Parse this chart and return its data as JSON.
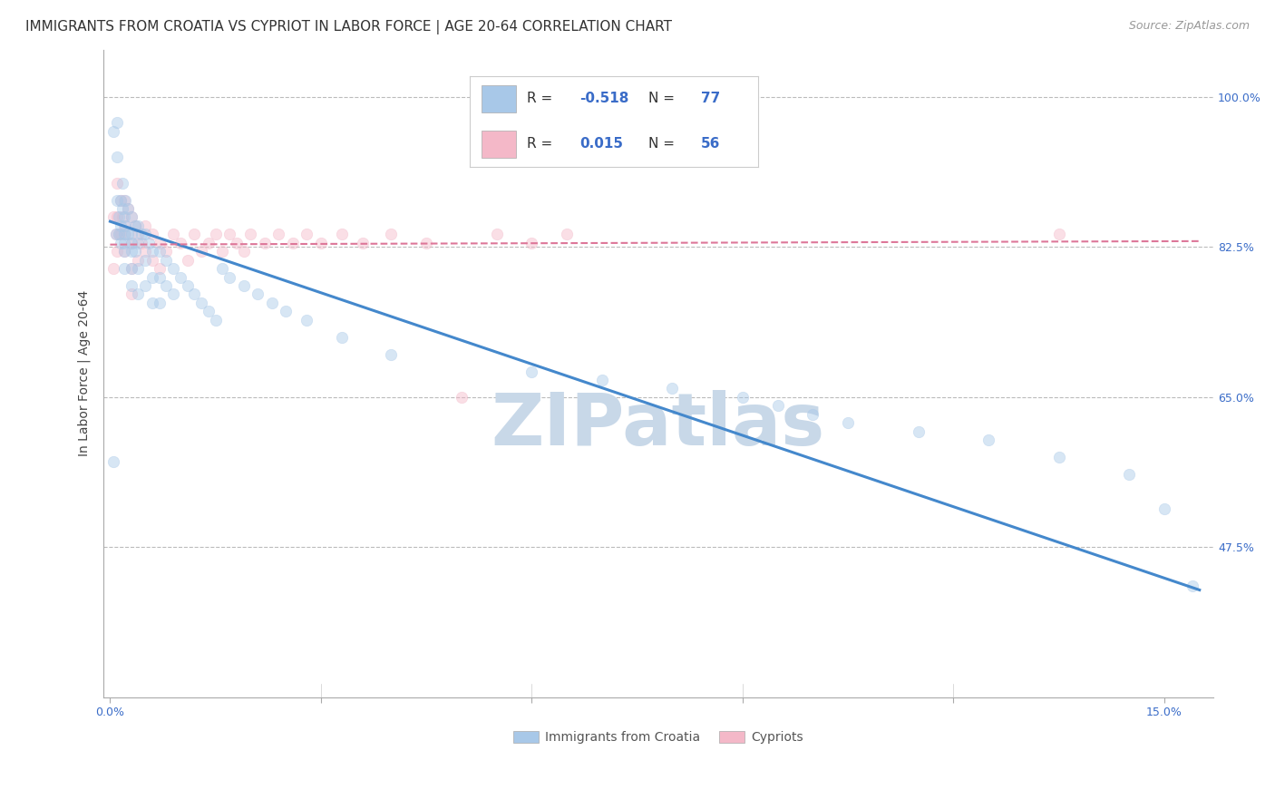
{
  "title": "IMMIGRANTS FROM CROATIA VS CYPRIOT IN LABOR FORCE | AGE 20-64 CORRELATION CHART",
  "source": "Source: ZipAtlas.com",
  "xlabel_ticks": [
    0.0,
    0.03,
    0.06,
    0.09,
    0.12,
    0.15
  ],
  "xlabel_tick_labels": [
    "0.0%",
    "",
    "",
    "",
    "",
    "15.0%"
  ],
  "ylabel_ticks": [
    0.475,
    0.65,
    0.825,
    1.0
  ],
  "ylabel_tick_labels": [
    "47.5%",
    "65.0%",
    "82.5%",
    "100.0%"
  ],
  "xlim": [
    -0.001,
    0.157
  ],
  "ylim": [
    0.3,
    1.055
  ],
  "ylabel": "In Labor Force | Age 20-64",
  "blue_color": "#A8C8E8",
  "pink_color": "#F4B8C8",
  "blue_line_color": "#4488CC",
  "pink_line_color": "#DD7799",
  "legend_label_blue": "Immigrants from Croatia",
  "legend_label_pink": "Cypriots",
  "blue_scatter_x": [
    0.0005,
    0.0005,
    0.0008,
    0.001,
    0.001,
    0.001,
    0.0012,
    0.0012,
    0.0015,
    0.0015,
    0.0015,
    0.0018,
    0.0018,
    0.002,
    0.002,
    0.002,
    0.002,
    0.002,
    0.0022,
    0.0022,
    0.0025,
    0.0025,
    0.003,
    0.003,
    0.003,
    0.003,
    0.003,
    0.003,
    0.0035,
    0.0035,
    0.004,
    0.004,
    0.004,
    0.004,
    0.0045,
    0.005,
    0.005,
    0.005,
    0.0055,
    0.006,
    0.006,
    0.006,
    0.007,
    0.007,
    0.007,
    0.008,
    0.008,
    0.009,
    0.009,
    0.01,
    0.011,
    0.012,
    0.013,
    0.014,
    0.015,
    0.016,
    0.017,
    0.019,
    0.021,
    0.023,
    0.025,
    0.028,
    0.033,
    0.04,
    0.06,
    0.07,
    0.08,
    0.09,
    0.095,
    0.1,
    0.105,
    0.115,
    0.125,
    0.135,
    0.145,
    0.15,
    0.154
  ],
  "blue_scatter_y": [
    0.575,
    0.96,
    0.84,
    0.93,
    0.97,
    0.88,
    0.86,
    0.84,
    0.88,
    0.85,
    0.83,
    0.9,
    0.87,
    0.86,
    0.84,
    0.82,
    0.8,
    0.83,
    0.88,
    0.85,
    0.87,
    0.84,
    0.86,
    0.84,
    0.82,
    0.8,
    0.78,
    0.83,
    0.85,
    0.82,
    0.85,
    0.83,
    0.8,
    0.77,
    0.84,
    0.84,
    0.81,
    0.78,
    0.83,
    0.82,
    0.79,
    0.76,
    0.82,
    0.79,
    0.76,
    0.81,
    0.78,
    0.8,
    0.77,
    0.79,
    0.78,
    0.77,
    0.76,
    0.75,
    0.74,
    0.8,
    0.79,
    0.78,
    0.77,
    0.76,
    0.75,
    0.74,
    0.72,
    0.7,
    0.68,
    0.67,
    0.66,
    0.65,
    0.64,
    0.63,
    0.62,
    0.61,
    0.6,
    0.58,
    0.56,
    0.52,
    0.43
  ],
  "pink_scatter_x": [
    0.0005,
    0.0005,
    0.0008,
    0.001,
    0.001,
    0.001,
    0.0012,
    0.0015,
    0.0015,
    0.0018,
    0.002,
    0.002,
    0.002,
    0.0022,
    0.0025,
    0.003,
    0.003,
    0.003,
    0.003,
    0.0035,
    0.004,
    0.004,
    0.0045,
    0.005,
    0.005,
    0.006,
    0.006,
    0.007,
    0.007,
    0.008,
    0.009,
    0.01,
    0.011,
    0.012,
    0.013,
    0.014,
    0.015,
    0.016,
    0.017,
    0.018,
    0.019,
    0.02,
    0.022,
    0.024,
    0.026,
    0.028,
    0.03,
    0.033,
    0.036,
    0.04,
    0.045,
    0.05,
    0.055,
    0.06,
    0.065,
    0.135
  ],
  "pink_scatter_y": [
    0.86,
    0.8,
    0.84,
    0.9,
    0.86,
    0.82,
    0.84,
    0.88,
    0.84,
    0.86,
    0.88,
    0.85,
    0.82,
    0.84,
    0.87,
    0.86,
    0.83,
    0.8,
    0.77,
    0.85,
    0.84,
    0.81,
    0.83,
    0.85,
    0.82,
    0.84,
    0.81,
    0.83,
    0.8,
    0.82,
    0.84,
    0.83,
    0.81,
    0.84,
    0.82,
    0.83,
    0.84,
    0.82,
    0.84,
    0.83,
    0.82,
    0.84,
    0.83,
    0.84,
    0.83,
    0.84,
    0.83,
    0.84,
    0.83,
    0.84,
    0.83,
    0.65,
    0.84,
    0.83,
    0.84,
    0.84
  ],
  "blue_trend_x": [
    0.0,
    0.155
  ],
  "blue_trend_y": [
    0.855,
    0.425
  ],
  "pink_trend_x": [
    0.0,
    0.155
  ],
  "pink_trend_y": [
    0.828,
    0.832
  ],
  "watermark": "ZIPatlas",
  "watermark_color": "#C8D8E8",
  "grid_color": "#BBBBBB",
  "title_fontsize": 11,
  "source_fontsize": 9,
  "axis_label_fontsize": 10,
  "tick_fontsize": 9,
  "scatter_size": 80,
  "scatter_alpha": 0.45
}
